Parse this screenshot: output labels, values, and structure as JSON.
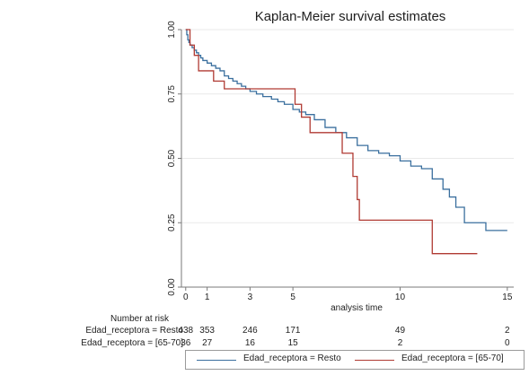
{
  "chart_data": {
    "type": "line",
    "title": "Kaplan-Meier survival estimates",
    "xlabel": "analysis time",
    "ylabel": "",
    "xlim": [
      -0.2,
      15.3
    ],
    "ylim": [
      0,
      1
    ],
    "x_ticks": [
      0,
      1,
      3,
      5,
      10,
      15
    ],
    "x_tick_labels": [
      "0",
      "1",
      "3",
      "5",
      "10",
      "15"
    ],
    "y_ticks": [
      0,
      0.25,
      0.5,
      0.75,
      1
    ],
    "y_tick_labels": [
      "0.00",
      "0.25",
      "0.50",
      "0.75",
      "1.00"
    ],
    "grid": "horizontal",
    "legend_placement": "bottom",
    "series": [
      {
        "name": "Edad_receptora = Resto",
        "color": "#3a6f9e",
        "x": [
          0,
          0.05,
          0.1,
          0.15,
          0.2,
          0.3,
          0.4,
          0.5,
          0.6,
          0.7,
          0.8,
          1.0,
          1.2,
          1.4,
          1.6,
          1.8,
          2.0,
          2.2,
          2.4,
          2.6,
          2.8,
          3.0,
          3.3,
          3.6,
          4.0,
          4.3,
          4.6,
          5.0,
          5.3,
          5.6,
          6.0,
          6.5,
          7.0,
          7.5,
          8.0,
          8.5,
          9.0,
          9.5,
          10.0,
          10.5,
          11.0,
          11.5,
          12.0,
          12.3,
          12.6,
          13.0,
          14.0,
          15.0
        ],
        "values": [
          1.0,
          0.98,
          0.96,
          0.95,
          0.94,
          0.93,
          0.92,
          0.91,
          0.9,
          0.89,
          0.88,
          0.87,
          0.86,
          0.85,
          0.84,
          0.82,
          0.81,
          0.8,
          0.79,
          0.78,
          0.77,
          0.76,
          0.75,
          0.74,
          0.73,
          0.72,
          0.71,
          0.69,
          0.68,
          0.67,
          0.65,
          0.62,
          0.6,
          0.58,
          0.55,
          0.53,
          0.52,
          0.51,
          0.49,
          0.47,
          0.46,
          0.42,
          0.38,
          0.35,
          0.31,
          0.25,
          0.22,
          0.22
        ]
      },
      {
        "name": "Edad_receptora = [65-70]",
        "color": "#b03a33",
        "x": [
          0,
          0.2,
          0.4,
          0.6,
          1.3,
          1.8,
          5.1,
          5.4,
          5.8,
          7.0,
          7.3,
          7.8,
          8.0,
          8.1,
          11.4,
          11.5,
          13.6
        ],
        "values": [
          1.0,
          0.94,
          0.9,
          0.84,
          0.8,
          0.77,
          0.71,
          0.66,
          0.6,
          0.6,
          0.52,
          0.43,
          0.34,
          0.26,
          0.26,
          0.13,
          0.13
        ]
      }
    ],
    "number_at_risk": {
      "title": "Number at risk",
      "at_x": [
        0,
        1,
        3,
        5,
        10,
        15
      ],
      "rows": [
        {
          "label": "Edad_receptora = Resto",
          "values": [
            "438",
            "353",
            "246",
            "171",
            "49",
            "2"
          ]
        },
        {
          "label": "Edad_receptora = [65-70]",
          "values": [
            "36",
            "27",
            "16",
            "15",
            "2",
            "0"
          ]
        }
      ]
    },
    "colors": {
      "axis": "#7a7a7a",
      "grid": "#e9e9e9",
      "text": "#222222"
    }
  }
}
